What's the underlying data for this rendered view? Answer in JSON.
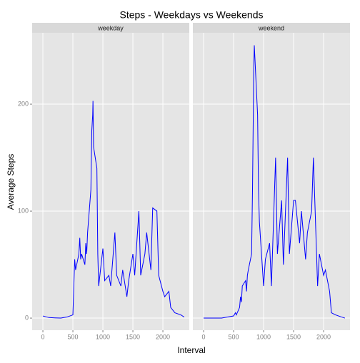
{
  "chart_data": {
    "type": "line",
    "title": "Steps - Weekdays vs Weekends",
    "x_label": "Interval",
    "y_label": "Average Steps",
    "facet": true,
    "grid": true,
    "x": [
      0,
      100,
      200,
      300,
      400,
      500,
      530,
      545,
      600,
      615,
      630,
      645,
      700,
      715,
      730,
      745,
      800,
      815,
      830,
      835,
      845,
      900,
      915,
      930,
      1000,
      1030,
      1100,
      1130,
      1200,
      1230,
      1300,
      1330,
      1400,
      1430,
      1500,
      1530,
      1600,
      1630,
      1700,
      1730,
      1800,
      1830,
      1900,
      1930,
      2000,
      2030,
      2100,
      2130,
      2200,
      2300,
      2355
    ],
    "series": [
      {
        "name": "weekday",
        "color": "#0000ff",
        "values": [
          2,
          0.5,
          0.2,
          0,
          1,
          3,
          55,
          45,
          60,
          75,
          55,
          60,
          50,
          70,
          60,
          80,
          120,
          175,
          190,
          203,
          160,
          140,
          60,
          30,
          65,
          35,
          40,
          30,
          80,
          40,
          30,
          45,
          20,
          35,
          60,
          40,
          100,
          40,
          60,
          80,
          45,
          103,
          100,
          40,
          25,
          20,
          25,
          10,
          5,
          3,
          1
        ]
      },
      {
        "name": "weekend",
        "color": "#0000ff",
        "values": [
          0,
          0,
          0,
          0,
          1,
          2,
          5,
          3,
          10,
          20,
          15,
          30,
          35,
          25,
          40,
          45,
          60,
          120,
          200,
          230,
          255,
          190,
          120,
          90,
          30,
          55,
          70,
          30,
          150,
          60,
          110,
          50,
          150,
          60,
          110,
          110,
          70,
          100,
          55,
          80,
          100,
          150,
          30,
          60,
          40,
          45,
          25,
          5,
          3,
          1,
          0
        ]
      }
    ],
    "xlim": [
      -179,
      2440
    ],
    "xticks": [
      0,
      500,
      1000,
      1500,
      2000
    ],
    "ylim": [
      -11.3,
      266.7
    ],
    "yticks": [
      0,
      100,
      200
    ]
  }
}
